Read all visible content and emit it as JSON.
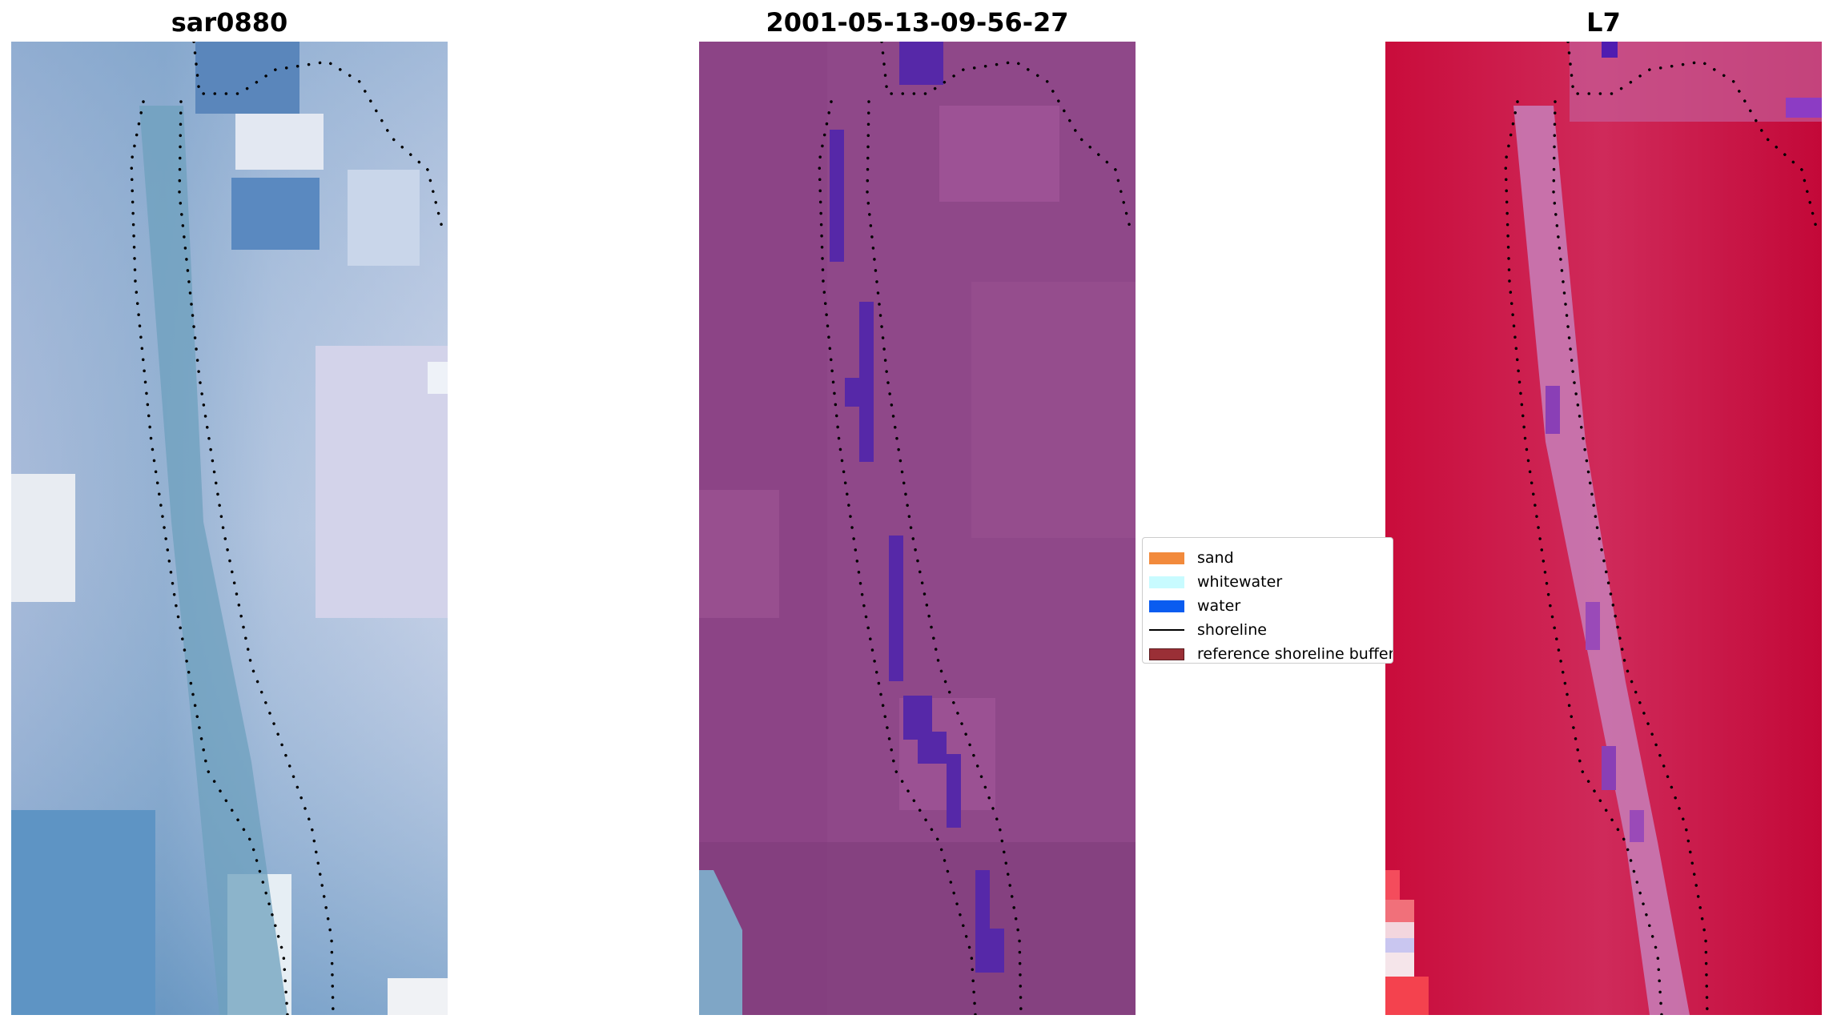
{
  "panels": [
    {
      "title": "sar0880"
    },
    {
      "title": "2001-05-13-09-56-27"
    },
    {
      "title": "L7"
    }
  ],
  "legend": {
    "items": [
      {
        "label": "sand",
        "color": "#f28a3c",
        "kind": "patch"
      },
      {
        "label": "whitewater",
        "color": "#c8fbff",
        "kind": "patch"
      },
      {
        "label": "water",
        "color": "#0a5cf0",
        "kind": "patch"
      },
      {
        "label": "shoreline",
        "color": "#000000",
        "kind": "line"
      },
      {
        "label": "reference shoreline buffer",
        "color": "#9a2f36",
        "kind": "patch"
      }
    ]
  },
  "colors": {
    "rgb_base": "#9fb3d4",
    "classified_base": "#8f4889",
    "classified_water_pixels": "#5628a8",
    "index_base": "#c7123e",
    "index_shore": "#c46aa8",
    "shoreline_dots": "#000000"
  }
}
